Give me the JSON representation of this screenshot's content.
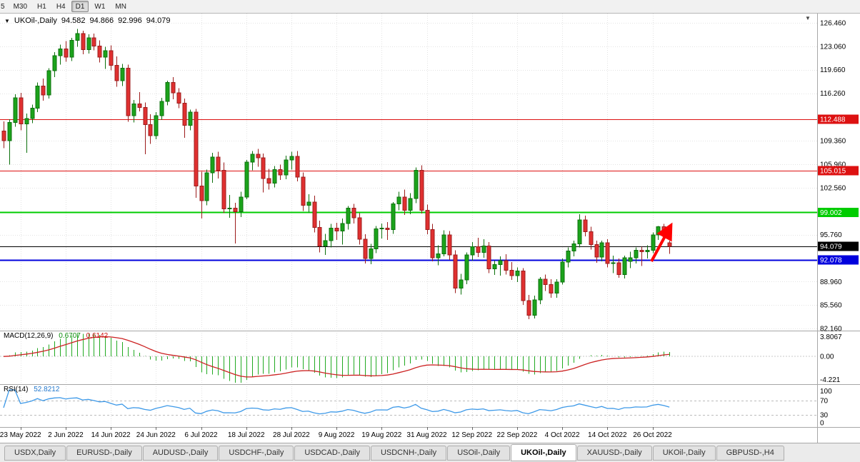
{
  "toolbar": {
    "clipped_label": "5",
    "buttons": [
      "M30",
      "H1",
      "H4",
      "D1",
      "W1",
      "MN"
    ],
    "active": "D1"
  },
  "icons": {
    "one_click_arrow": "▼",
    "shift_marker": "▼"
  },
  "chart": {
    "title": {
      "symbol_period": "UKOil-,Daily",
      "open": "94.582",
      "high": "94.866",
      "low": "92.996",
      "close": "94.079"
    }
  },
  "chart_data": {
    "type": "candlestick",
    "symbol": "UKOil-,Daily",
    "style": {
      "up_fill": "#1ba31b",
      "up_stroke": "#0c700c",
      "down_fill": "#e03030",
      "down_stroke": "#9c1c1c",
      "grid": "#e3e3e3"
    },
    "y_axis": {
      "labels": [
        "126.460",
        "123.060",
        "119.660",
        "116.260",
        "109.360",
        "105.960",
        "102.560",
        "95.760",
        "88.960",
        "85.560",
        "82.160"
      ]
    },
    "x_axis": {
      "labels": [
        {
          "i": 3,
          "t": "23 May 2022"
        },
        {
          "i": 11,
          "t": "2 Jun 2022"
        },
        {
          "i": 19,
          "t": "14 Jun 2022"
        },
        {
          "i": 27,
          "t": "24 Jun 2022"
        },
        {
          "i": 35,
          "t": "6 Jul 2022"
        },
        {
          "i": 43,
          "t": "18 Jul 2022"
        },
        {
          "i": 51,
          "t": "28 Jul 2022"
        },
        {
          "i": 59,
          "t": "9 Aug 2022"
        },
        {
          "i": 67,
          "t": "19 Aug 2022"
        },
        {
          "i": 75,
          "t": "31 Aug 2022"
        },
        {
          "i": 83,
          "t": "12 Sep 2022"
        },
        {
          "i": 91,
          "t": "22 Sep 2022"
        },
        {
          "i": 99,
          "t": "4 Oct 2022"
        },
        {
          "i": 107,
          "t": "14 Oct 2022"
        },
        {
          "i": 115,
          "t": "26 Oct 2022"
        }
      ]
    },
    "levels": [
      {
        "price": "112.488",
        "color": "#dd1111",
        "width": 1
      },
      {
        "price": "105.015",
        "color": "#dd1111",
        "width": 1
      },
      {
        "price": "99.002",
        "color": "#00cc00",
        "width": 2
      },
      {
        "price": "92.078",
        "color": "#0000dd",
        "width": 2
      },
      {
        "price": "94.079",
        "color": "#000000",
        "width": 1
      }
    ],
    "arrow": {
      "color": "#ff0000"
    },
    "indicators": {
      "macd": {
        "label": "MACD(12,26,9)",
        "value_main": "0.6707",
        "value_signal": "0.6142",
        "axis_labels": [
          "3.8067",
          "0.00",
          "-4.221"
        ],
        "ylim": [
          -4.221,
          3.8067
        ],
        "fast": 12,
        "slow": 26,
        "signal": 9,
        "histogram_color": "#22aa22",
        "signal_color": "#cc2222"
      },
      "rsi": {
        "label": "RSI(14)",
        "value": "52.8212",
        "axis_labels": [
          "100",
          "70",
          "30",
          "0"
        ],
        "levels": [
          70,
          30
        ],
        "line_color": "#3d99e8"
      }
    },
    "candles": [
      [
        110.8,
        112.2,
        108.3,
        109.4
      ],
      [
        109.4,
        112.5,
        105.9,
        112.0
      ],
      [
        112.0,
        116.1,
        111.4,
        115.6
      ],
      [
        115.6,
        116.3,
        110.9,
        111.8
      ],
      [
        111.8,
        113.3,
        107.6,
        112.6
      ],
      [
        112.6,
        114.6,
        111.9,
        114.1
      ],
      [
        114.1,
        117.8,
        113.5,
        117.3
      ],
      [
        117.3,
        118.4,
        115.2,
        116.0
      ],
      [
        116.0,
        119.9,
        115.5,
        119.5
      ],
      [
        119.5,
        122.2,
        118.6,
        121.7
      ],
      [
        121.7,
        123.3,
        120.4,
        122.7
      ],
      [
        122.7,
        123.8,
        120.8,
        121.5
      ],
      [
        121.5,
        124.3,
        120.9,
        123.9
      ],
      [
        123.9,
        125.6,
        123.0,
        124.9
      ],
      [
        124.9,
        125.3,
        121.9,
        122.6
      ],
      [
        122.6,
        124.8,
        122.0,
        124.3
      ],
      [
        124.3,
        124.9,
        122.5,
        123.1
      ],
      [
        123.1,
        123.9,
        120.7,
        121.5
      ],
      [
        121.5,
        123.0,
        119.8,
        122.4
      ],
      [
        122.4,
        123.2,
        119.6,
        120.3
      ],
      [
        120.3,
        121.6,
        117.2,
        118.1
      ],
      [
        118.1,
        120.5,
        117.3,
        119.9
      ],
      [
        119.9,
        120.4,
        112.1,
        113.0
      ],
      [
        113.0,
        115.3,
        112.0,
        114.7
      ],
      [
        114.7,
        116.4,
        113.6,
        114.2
      ],
      [
        114.2,
        114.9,
        107.4,
        111.7
      ],
      [
        111.7,
        113.2,
        108.9,
        110.1
      ],
      [
        110.1,
        113.5,
        109.6,
        113.0
      ],
      [
        113.0,
        115.6,
        112.4,
        115.1
      ],
      [
        115.1,
        118.1,
        114.5,
        117.8
      ],
      [
        117.8,
        118.6,
        115.4,
        116.3
      ],
      [
        116.3,
        117.0,
        114.1,
        114.8
      ],
      [
        114.8,
        115.5,
        109.8,
        111.6
      ],
      [
        111.6,
        113.9,
        110.9,
        113.5
      ],
      [
        113.5,
        114.0,
        101.1,
        102.8
      ],
      [
        102.8,
        104.9,
        98.1,
        100.7
      ],
      [
        100.7,
        105.2,
        100.0,
        104.7
      ],
      [
        104.7,
        107.6,
        103.3,
        107.0
      ],
      [
        107.0,
        107.8,
        103.9,
        105.1
      ],
      [
        105.1,
        106.2,
        98.9,
        99.5
      ],
      [
        99.5,
        101.5,
        98.2,
        99.6
      ],
      [
        99.6,
        100.4,
        94.5,
        99.1
      ],
      [
        99.1,
        102.0,
        98.3,
        101.2
      ],
      [
        101.2,
        106.6,
        100.9,
        106.3
      ],
      [
        106.3,
        107.9,
        105.1,
        107.4
      ],
      [
        107.4,
        108.2,
        105.6,
        106.9
      ],
      [
        106.9,
        107.5,
        101.9,
        103.9
      ],
      [
        103.9,
        105.3,
        102.3,
        103.2
      ],
      [
        103.2,
        105.7,
        102.6,
        105.2
      ],
      [
        105.2,
        105.9,
        103.7,
        104.4
      ],
      [
        104.4,
        107.2,
        103.8,
        106.6
      ],
      [
        106.6,
        107.8,
        105.2,
        107.1
      ],
      [
        107.1,
        107.9,
        103.5,
        104.1
      ],
      [
        104.1,
        104.8,
        99.2,
        100.0
      ],
      [
        100.0,
        101.6,
        99.0,
        100.5
      ],
      [
        100.5,
        101.4,
        96.1,
        96.8
      ],
      [
        96.8,
        97.8,
        93.2,
        94.1
      ],
      [
        94.1,
        95.9,
        92.8,
        94.9
      ],
      [
        94.9,
        97.3,
        93.9,
        96.7
      ],
      [
        96.7,
        97.5,
        95.0,
        96.3
      ],
      [
        96.3,
        98.1,
        94.3,
        97.4
      ],
      [
        97.4,
        99.9,
        96.5,
        99.6
      ],
      [
        99.6,
        100.2,
        97.4,
        98.2
      ],
      [
        98.2,
        98.9,
        94.3,
        95.1
      ],
      [
        95.1,
        95.8,
        91.6,
        92.3
      ],
      [
        92.3,
        94.4,
        91.5,
        93.7
      ],
      [
        93.7,
        97.0,
        93.1,
        96.6
      ],
      [
        96.6,
        97.4,
        95.2,
        96.7
      ],
      [
        96.7,
        97.6,
        95.0,
        96.5
      ],
      [
        96.5,
        100.5,
        95.9,
        100.2
      ],
      [
        100.2,
        102.0,
        99.3,
        101.2
      ],
      [
        101.2,
        102.3,
        98.6,
        99.3
      ],
      [
        99.3,
        101.8,
        98.7,
        101.0
      ],
      [
        101.0,
        105.5,
        100.3,
        105.1
      ],
      [
        105.1,
        105.8,
        98.8,
        99.3
      ],
      [
        99.3,
        100.1,
        95.8,
        96.5
      ],
      [
        96.5,
        97.3,
        91.9,
        92.4
      ],
      [
        92.4,
        94.2,
        91.3,
        93.0
      ],
      [
        93.0,
        96.4,
        92.6,
        95.7
      ],
      [
        95.7,
        96.3,
        92.1,
        92.8
      ],
      [
        92.8,
        93.5,
        87.3,
        88.0
      ],
      [
        88.0,
        90.1,
        87.1,
        89.2
      ],
      [
        89.2,
        93.2,
        88.6,
        92.8
      ],
      [
        92.8,
        94.7,
        92.0,
        94.0
      ],
      [
        94.0,
        95.3,
        92.5,
        93.2
      ],
      [
        93.2,
        95.1,
        92.4,
        94.1
      ],
      [
        94.1,
        94.7,
        90.2,
        90.8
      ],
      [
        90.8,
        92.0,
        89.9,
        91.4
      ],
      [
        91.4,
        92.6,
        89.8,
        92.0
      ],
      [
        92.0,
        92.9,
        90.0,
        90.6
      ],
      [
        90.6,
        91.8,
        89.2,
        89.8
      ],
      [
        89.8,
        91.0,
        88.9,
        90.5
      ],
      [
        90.5,
        90.9,
        85.6,
        86.2
      ],
      [
        86.2,
        87.0,
        83.5,
        84.1
      ],
      [
        84.1,
        86.9,
        83.6,
        86.3
      ],
      [
        86.3,
        89.6,
        85.7,
        89.3
      ],
      [
        89.3,
        90.0,
        87.6,
        88.5
      ],
      [
        88.5,
        89.3,
        86.6,
        87.3
      ],
      [
        87.3,
        89.3,
        86.6,
        88.9
      ],
      [
        88.9,
        92.3,
        88.5,
        91.8
      ],
      [
        91.8,
        93.9,
        91.0,
        93.4
      ],
      [
        93.4,
        94.9,
        92.6,
        94.4
      ],
      [
        94.4,
        98.7,
        93.9,
        97.9
      ],
      [
        97.9,
        98.5,
        95.5,
        96.2
      ],
      [
        96.2,
        96.9,
        93.6,
        94.3
      ],
      [
        94.3,
        94.9,
        91.7,
        92.5
      ],
      [
        92.5,
        94.9,
        91.9,
        94.6
      ],
      [
        94.6,
        95.1,
        91.0,
        91.6
      ],
      [
        91.6,
        92.7,
        90.2,
        91.7
      ],
      [
        91.7,
        92.3,
        89.5,
        90.0
      ],
      [
        90.0,
        92.7,
        89.4,
        92.4
      ],
      [
        91.9,
        93.3,
        90.9,
        92.4
      ],
      [
        92.4,
        93.9,
        91.6,
        93.5
      ],
      [
        93.5,
        94.0,
        91.2,
        93.3
      ],
      [
        93.3,
        94.2,
        92.3,
        93.5
      ],
      [
        93.5,
        96.1,
        93.1,
        95.7
      ],
      [
        95.7,
        97.0,
        95.0,
        96.9
      ],
      [
        96.9,
        97.3,
        94.9,
        95.8
      ],
      [
        94.582,
        94.866,
        92.996,
        94.079
      ]
    ]
  },
  "tabs": {
    "items": [
      "USDX,Daily",
      "EURUSD-,Daily",
      "AUDUSD-,Daily",
      "USDCHF-,Daily",
      "USDCAD-,Daily",
      "USDCNH-,Daily",
      "USOil-,Daily",
      "UKOil-,Daily",
      "XAUUSD-,Daily",
      "UKOil-,Daily",
      "GBPUSD-,H4"
    ],
    "active_index": 7
  }
}
